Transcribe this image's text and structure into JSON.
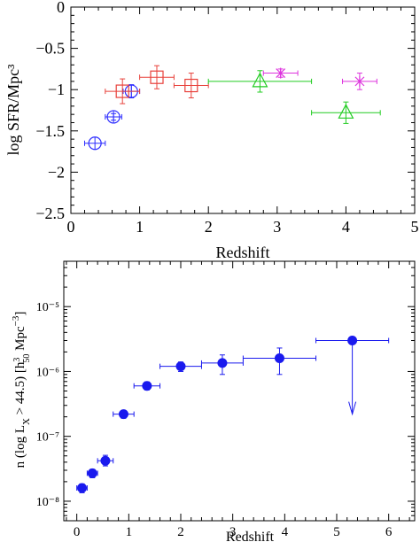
{
  "chart_data": [
    {
      "type": "scatter",
      "xlabel": "Redshift",
      "ylabel": "log SFR/Mpc³",
      "xlim": [
        0,
        5
      ],
      "ylim": [
        -2.5,
        0
      ],
      "x_ticks": [
        "0",
        "1",
        "2",
        "3",
        "4",
        "5"
      ],
      "y_ticks": [
        "0",
        "−0.5",
        "−1",
        "−1.5",
        "−2",
        "−2.5"
      ],
      "series": [
        {
          "marker": "circle-cross",
          "color": "#2b2bff",
          "points": [
            {
              "x": 0.35,
              "y": -1.65,
              "xerr": 0.15,
              "yerr": 0.0
            },
            {
              "x": 0.62,
              "y": -1.33,
              "xerr": 0.12,
              "yerr": 0.04
            },
            {
              "x": 0.88,
              "y": -1.02,
              "xerr": 0.12,
              "yerr": 0.08
            }
          ]
        },
        {
          "marker": "square",
          "color": "#e8403a",
          "points": [
            {
              "x": 0.75,
              "y": -1.02,
              "xerr": 0.25,
              "yerr": 0.15
            },
            {
              "x": 1.25,
              "y": -0.85,
              "xerr": 0.25,
              "yerr": 0.14
            },
            {
              "x": 1.75,
              "y": -0.95,
              "xerr": 0.25,
              "yerr": 0.15
            }
          ]
        },
        {
          "marker": "triangle",
          "color": "#22cc22",
          "points": [
            {
              "x": 2.75,
              "y": -0.9,
              "xerr": 0.75,
              "yerr": 0.13
            },
            {
              "x": 4.0,
              "y": -1.28,
              "xerr": 0.5,
              "yerr": 0.13
            }
          ]
        },
        {
          "marker": "star",
          "color": "#dd33dd",
          "points": [
            {
              "x": 3.05,
              "y": -0.8,
              "xerr": 0.25,
              "yerr": 0.05
            },
            {
              "x": 4.2,
              "y": -0.9,
              "xerr": 0.25,
              "yerr": 0.1
            }
          ]
        }
      ]
    },
    {
      "type": "scatter",
      "xlabel": "Redshift",
      "ylabel": "n (log L_X > 44.5) [h_50^3 Mpc^-3]",
      "xlim": [
        -0.25,
        6.5
      ],
      "ylim": [
        5e-09,
        5e-05
      ],
      "y_scale": "log",
      "x_ticks": [
        "0",
        "1",
        "2",
        "3",
        "4",
        "5",
        "6"
      ],
      "y_ticks": [
        "10⁻⁸",
        "10⁻⁷",
        "10⁻⁶",
        "10⁻⁵"
      ],
      "series": [
        {
          "marker": "filled-circle",
          "color": "#1a1aee",
          "points": [
            {
              "x": 0.1,
              "y": 1.6e-08,
              "xlo": 0.0,
              "xhi": 0.2,
              "ylo": 1.35e-08,
              "yhi": 1.85e-08
            },
            {
              "x": 0.3,
              "y": 2.7e-08,
              "xlo": 0.2,
              "xhi": 0.4,
              "ylo": 2.3e-08,
              "yhi": 3.1e-08
            },
            {
              "x": 0.55,
              "y": 4.2e-08,
              "xlo": 0.4,
              "xhi": 0.7,
              "ylo": 3.5e-08,
              "yhi": 5.1e-08
            },
            {
              "x": 0.9,
              "y": 2.2e-07,
              "xlo": 0.7,
              "xhi": 1.1,
              "ylo": 1.9e-07,
              "yhi": 2.5e-07
            },
            {
              "x": 1.35,
              "y": 6e-07,
              "xlo": 1.1,
              "xhi": 1.6,
              "ylo": 5.2e-07,
              "yhi": 6.9e-07
            },
            {
              "x": 2.0,
              "y": 1.2e-06,
              "xlo": 1.6,
              "xhi": 2.4,
              "ylo": 1e-06,
              "yhi": 1.4e-06
            },
            {
              "x": 2.8,
              "y": 1.35e-06,
              "xlo": 2.4,
              "xhi": 3.2,
              "ylo": 9e-07,
              "yhi": 1.8e-06
            },
            {
              "x": 3.9,
              "y": 1.6e-06,
              "xlo": 3.2,
              "xhi": 4.6,
              "ylo": 9e-07,
              "yhi": 2.3e-06
            }
          ]
        },
        {
          "marker": "upper-limit",
          "color": "#1a1aee",
          "points": [
            {
              "x": 5.3,
              "y": 3e-06,
              "xlo": 4.6,
              "xhi": 6.0,
              "arrow_to": 2.2e-07
            }
          ]
        }
      ]
    }
  ]
}
